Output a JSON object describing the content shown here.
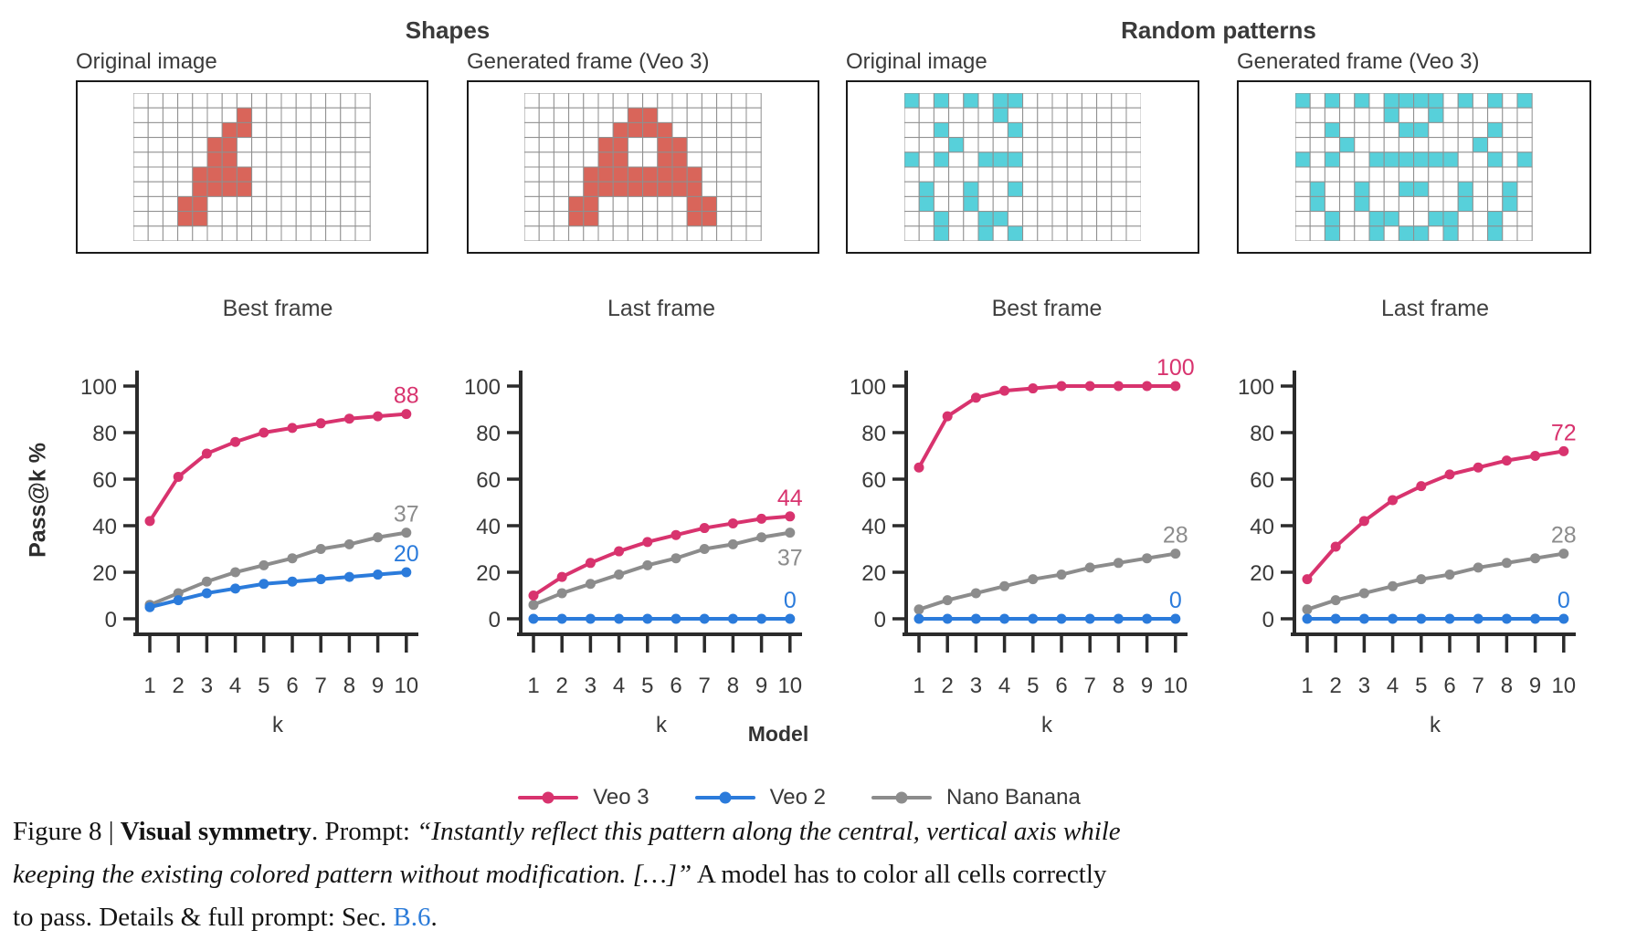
{
  "colors": {
    "veo3": "#d8336e",
    "veo2": "#2b7bdb",
    "nano_banana": "#8c8c8c",
    "shapes_cell": "#d9655a",
    "random_cell": "#57d0da",
    "grid_line": "#8f8f8f",
    "axis": "#2b2b2b",
    "tick_text": "#3a3a3a",
    "link": "#2b7bd9"
  },
  "groups": [
    {
      "title": "Shapes",
      "panels": [
        {
          "label": "Original image",
          "grid": {
            "cols": 16,
            "rows": 10,
            "fill": "shapes_cell",
            "cells": [
              [],
              [
                7
              ],
              [
                6,
                7
              ],
              [
                5,
                6
              ],
              [
                5,
                6
              ],
              [
                4,
                5,
                6,
                7
              ],
              [
                4,
                5,
                6,
                7
              ],
              [
                3,
                4
              ],
              [
                3,
                4
              ],
              []
            ]
          }
        },
        {
          "label": "Generated frame (Veo 3)",
          "grid": {
            "cols": 16,
            "rows": 10,
            "fill": "shapes_cell",
            "cells": [
              [],
              [
                7,
                8
              ],
              [
                6,
                7,
                8,
                9
              ],
              [
                5,
                6,
                9,
                10
              ],
              [
                5,
                6,
                9,
                10
              ],
              [
                4,
                5,
                6,
                7,
                8,
                9,
                10,
                11
              ],
              [
                4,
                5,
                6,
                7,
                8,
                9,
                10,
                11
              ],
              [
                3,
                4,
                11,
                12
              ],
              [
                3,
                4,
                11,
                12
              ],
              []
            ]
          }
        }
      ]
    },
    {
      "title": "Random patterns",
      "panels": [
        {
          "label": "Original image",
          "grid": {
            "cols": 16,
            "rows": 10,
            "fill": "random_cell",
            "cells": [
              [
                0,
                2,
                4,
                6,
                7
              ],
              [
                6
              ],
              [
                2,
                7
              ],
              [
                3
              ],
              [
                0,
                2,
                5,
                6,
                7
              ],
              [],
              [
                1,
                4,
                7
              ],
              [
                1,
                4
              ],
              [
                2,
                5,
                6
              ],
              [
                2,
                5,
                7
              ]
            ]
          }
        },
        {
          "label": "Generated frame (Veo 3)",
          "grid": {
            "cols": 16,
            "rows": 10,
            "fill": "random_cell",
            "cells": [
              [
                0,
                2,
                4,
                6,
                7,
                8,
                9,
                11,
                13,
                15
              ],
              [
                6,
                9
              ],
              [
                2,
                7,
                8,
                13
              ],
              [
                3,
                12
              ],
              [
                0,
                2,
                5,
                6,
                7,
                8,
                9,
                10,
                13,
                15
              ],
              [],
              [
                1,
                4,
                7,
                8,
                11,
                14
              ],
              [
                1,
                4,
                11,
                14
              ],
              [
                2,
                5,
                6,
                9,
                10,
                13
              ],
              [
                2,
                5,
                7,
                8,
                10,
                13
              ]
            ]
          }
        }
      ]
    }
  ],
  "chart_data": {
    "type": "line",
    "x_label": "k",
    "y_label": "Pass@k %",
    "x": [
      1,
      2,
      3,
      4,
      5,
      6,
      7,
      8,
      9,
      10
    ],
    "yticks": [
      0,
      20,
      40,
      60,
      80,
      100
    ],
    "ylim": [
      0,
      100
    ],
    "grid": false,
    "legend_position": "bottom",
    "charts": [
      {
        "title": "Best frame",
        "group": "Shapes",
        "series": [
          {
            "name": "Nano Banana",
            "key": "nano_banana",
            "values": [
              6,
              11,
              16,
              20,
              23,
              26,
              30,
              32,
              35,
              37
            ]
          },
          {
            "name": "Veo 2",
            "key": "veo2",
            "values": [
              5,
              8,
              11,
              13,
              15,
              16,
              17,
              18,
              19,
              20
            ]
          },
          {
            "name": "Veo 3",
            "key": "veo3",
            "values": [
              42,
              61,
              71,
              76,
              80,
              82,
              84,
              86,
              87,
              88
            ]
          }
        ],
        "annotations": [
          {
            "key": "veo3",
            "label": "88"
          },
          {
            "key": "nano_banana",
            "label": "37"
          },
          {
            "key": "veo2",
            "label": "20"
          }
        ]
      },
      {
        "title": "Last frame",
        "group": "Shapes",
        "series": [
          {
            "name": "Nano Banana",
            "key": "nano_banana",
            "values": [
              6,
              11,
              15,
              19,
              23,
              26,
              30,
              32,
              35,
              37
            ]
          },
          {
            "name": "Veo 2",
            "key": "veo2",
            "values": [
              0,
              0,
              0,
              0,
              0,
              0,
              0,
              0,
              0,
              0
            ]
          },
          {
            "name": "Veo 3",
            "key": "veo3",
            "values": [
              10,
              18,
              24,
              29,
              33,
              36,
              39,
              41,
              43,
              44
            ]
          }
        ],
        "annotations": [
          {
            "key": "veo3",
            "label": "44"
          },
          {
            "key": "nano_banana",
            "label": "37",
            "place": "below"
          },
          {
            "key": "veo2",
            "label": "0"
          }
        ]
      },
      {
        "title": "Best frame",
        "group": "Random patterns",
        "series": [
          {
            "name": "Nano Banana",
            "key": "nano_banana",
            "values": [
              4,
              8,
              11,
              14,
              17,
              19,
              22,
              24,
              26,
              28
            ]
          },
          {
            "name": "Veo 2",
            "key": "veo2",
            "values": [
              0,
              0,
              0,
              0,
              0,
              0,
              0,
              0,
              0,
              0
            ]
          },
          {
            "name": "Veo 3",
            "key": "veo3",
            "values": [
              65,
              87,
              95,
              98,
              99,
              100,
              100,
              100,
              100,
              100
            ]
          }
        ],
        "annotations": [
          {
            "key": "veo3",
            "label": "100"
          },
          {
            "key": "nano_banana",
            "label": "28"
          },
          {
            "key": "veo2",
            "label": "0"
          }
        ]
      },
      {
        "title": "Last frame",
        "group": "Random patterns",
        "series": [
          {
            "name": "Nano Banana",
            "key": "nano_banana",
            "values": [
              4,
              8,
              11,
              14,
              17,
              19,
              22,
              24,
              26,
              28
            ]
          },
          {
            "name": "Veo 2",
            "key": "veo2",
            "values": [
              0,
              0,
              0,
              0,
              0,
              0,
              0,
              0,
              0,
              0
            ]
          },
          {
            "name": "Veo 3",
            "key": "veo3",
            "values": [
              17,
              31,
              42,
              51,
              57,
              62,
              65,
              68,
              70,
              72
            ]
          }
        ],
        "annotations": [
          {
            "key": "veo3",
            "label": "72"
          },
          {
            "key": "nano_banana",
            "label": "28"
          },
          {
            "key": "veo2",
            "label": "0"
          }
        ]
      }
    ]
  },
  "legend": {
    "title": "Model",
    "items": [
      {
        "label": "Veo 3",
        "key": "veo3"
      },
      {
        "label": "Veo 2",
        "key": "veo2"
      },
      {
        "label": "Nano Banana",
        "key": "nano_banana"
      }
    ]
  },
  "caption": {
    "lines": [
      [
        {
          "text": "Figure 8 | ",
          "style": "regular"
        },
        {
          "text": "Visual symmetry",
          "style": "bold"
        },
        {
          "text": ". Prompt: ",
          "style": "regular"
        },
        {
          "text": "“Instantly reflect this pattern along the central, vertical axis while",
          "style": "italic"
        }
      ],
      [
        {
          "text": "keeping the existing colored pattern without modification.  […]”",
          "style": "italic"
        },
        {
          "text": " A model has to color all cells correctly",
          "style": "regular"
        }
      ],
      [
        {
          "text": "to pass. Details & full prompt: Sec. ",
          "style": "regular"
        },
        {
          "text": "B.6",
          "style": "link"
        },
        {
          "text": ".",
          "style": "regular"
        }
      ]
    ]
  }
}
